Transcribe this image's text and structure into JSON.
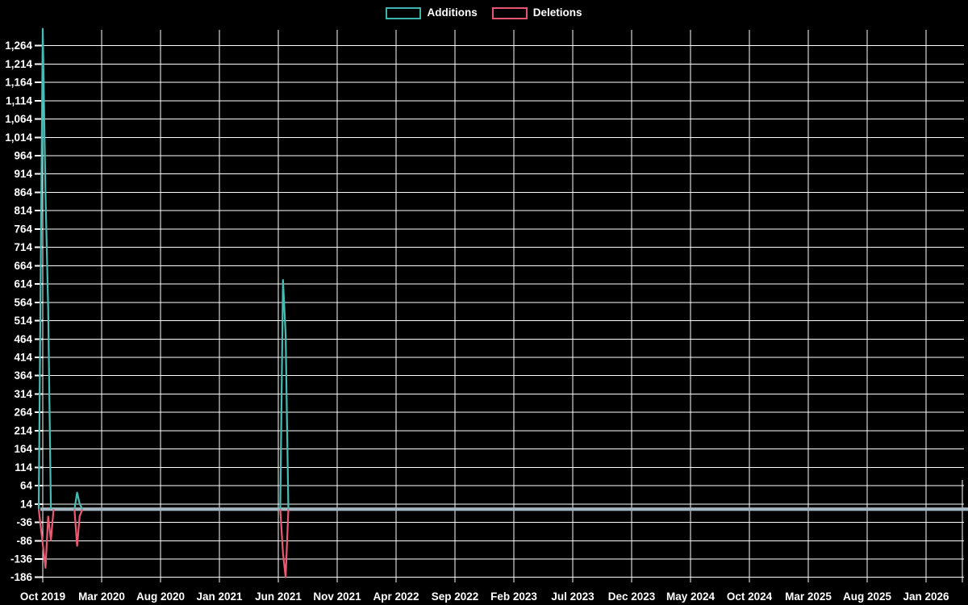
{
  "legend": {
    "items": [
      {
        "label": "Additions",
        "color": "#3cb5ae"
      },
      {
        "label": "Deletions",
        "color": "#e85571"
      }
    ]
  },
  "colors": {
    "background": "#000000",
    "grid": "#ffffff",
    "text": "#ffffff",
    "zero_line": "#a3b5c0",
    "additions": "#45bdb6",
    "deletions": "#ea5a73"
  },
  "chart_data": {
    "type": "line",
    "title": "",
    "xlabel": "",
    "ylabel": "",
    "grid": true,
    "legend_position": "top center",
    "x_tick_labels": [
      "Oct 2019",
      "Mar 2020",
      "Aug 2020",
      "Jan 2021",
      "Jun 2021",
      "Nov 2021",
      "Apr 2022",
      "Sep 2022",
      "Feb 2023",
      "Jul 2023",
      "Dec 2023",
      "May 2024",
      "Oct 2024",
      "Mar 2025",
      "Aug 2025",
      "Jan 2026"
    ],
    "y_ticks": [
      -186,
      -136,
      -86,
      -36,
      14,
      64,
      114,
      164,
      214,
      264,
      314,
      364,
      414,
      464,
      514,
      564,
      614,
      664,
      714,
      764,
      814,
      864,
      914,
      964,
      1014,
      1064,
      1114,
      1164,
      1214,
      1264
    ],
    "ylim": [
      -186,
      1310
    ],
    "zero_line_value": 0,
    "series": [
      {
        "name": "Additions",
        "color": "#45bdb6",
        "points": [
          [
            "2019-09-21",
            0
          ],
          [
            "2019-10-01",
            1310
          ],
          [
            "2019-10-08",
            860
          ],
          [
            "2019-10-15",
            550
          ],
          [
            "2019-10-22",
            0
          ],
          [
            "2019-12-22",
            0
          ],
          [
            "2019-12-29",
            45
          ],
          [
            "2020-01-05",
            15
          ],
          [
            "2020-01-12",
            0
          ],
          [
            "2021-06-06",
            0
          ],
          [
            "2021-06-13",
            625
          ],
          [
            "2021-06-20",
            475
          ],
          [
            "2021-06-27",
            0
          ],
          [
            "2026-01-01",
            0
          ]
        ]
      },
      {
        "name": "Deletions",
        "color": "#ea5a73",
        "points": [
          [
            "2019-09-21",
            0
          ],
          [
            "2019-10-08",
            -160
          ],
          [
            "2019-10-15",
            -20
          ],
          [
            "2019-10-22",
            -85
          ],
          [
            "2019-10-29",
            0
          ],
          [
            "2019-12-22",
            0
          ],
          [
            "2019-12-29",
            -100
          ],
          [
            "2020-01-05",
            -20
          ],
          [
            "2020-01-12",
            0
          ],
          [
            "2021-06-06",
            0
          ],
          [
            "2021-06-13",
            -120
          ],
          [
            "2021-06-20",
            -186
          ],
          [
            "2021-06-27",
            0
          ],
          [
            "2026-01-01",
            0
          ]
        ]
      }
    ]
  }
}
